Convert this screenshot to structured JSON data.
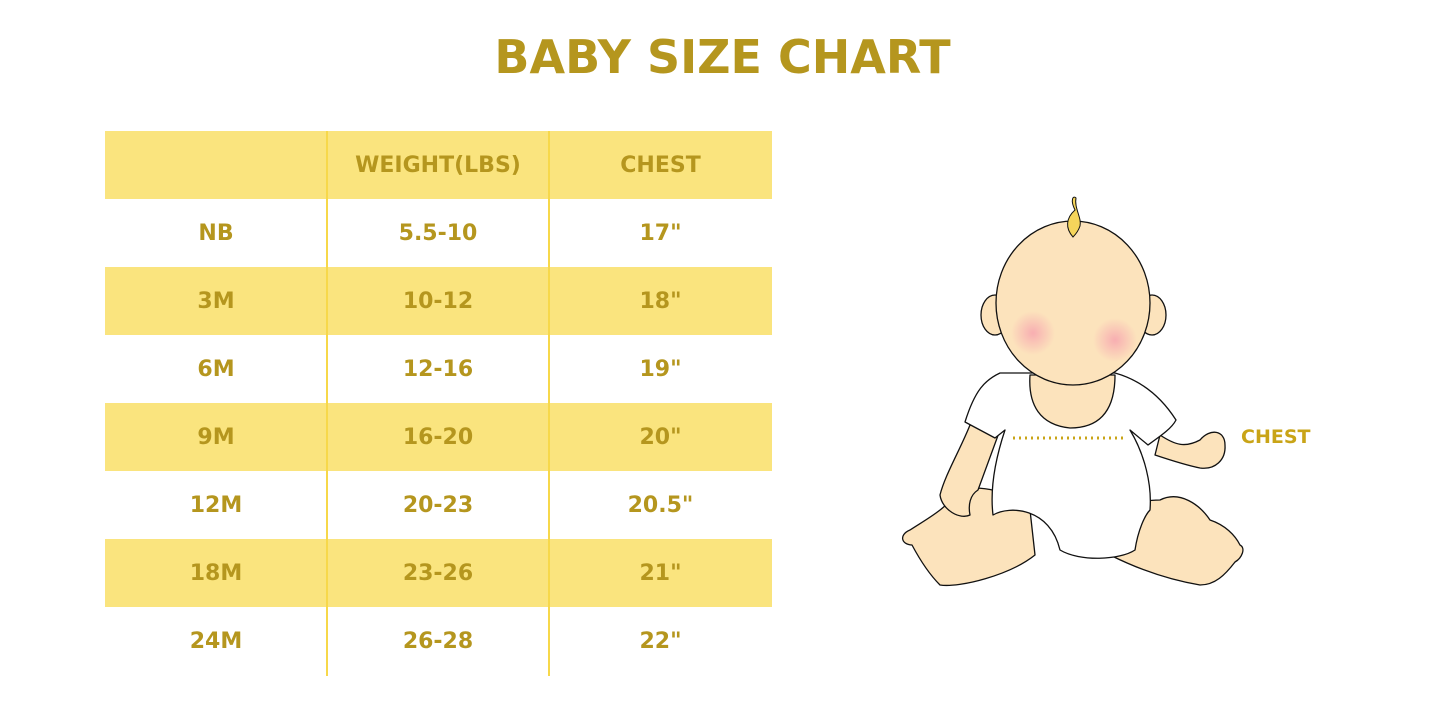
{
  "title": "BABY SIZE CHART",
  "colors": {
    "accent": "#B5961E",
    "stripe": "#FAE47E",
    "divider": "#F7D84A"
  },
  "table": {
    "headers": [
      "",
      "WEIGHT(LBS)",
      "CHEST"
    ],
    "rows": [
      [
        "NB",
        "5.5-10",
        "17\""
      ],
      [
        "3M",
        "10-12",
        "18\""
      ],
      [
        "6M",
        "12-16",
        "19\""
      ],
      [
        "9M",
        "16-20",
        "20\""
      ],
      [
        "12M",
        "20-23",
        "20.5\""
      ],
      [
        "18M",
        "23-26",
        "21\""
      ],
      [
        "24M",
        "26-28",
        "22\""
      ]
    ]
  },
  "illustration": {
    "chest_label": "CHEST"
  }
}
